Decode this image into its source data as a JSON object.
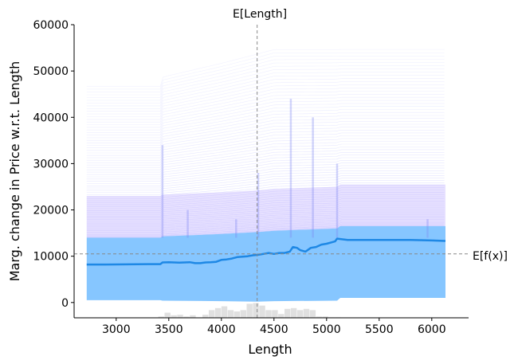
{
  "chart_data": {
    "type": "line",
    "title": "",
    "xlabel": "Length",
    "ylabel": "Marg. change in Price w.r.t. Length",
    "xlim": [
      2600,
      6350
    ],
    "ylim": [
      -3300,
      60000
    ],
    "xticks": [
      "3000",
      "3500",
      "4000",
      "4500",
      "5000",
      "5500",
      "6000"
    ],
    "yticks": [
      "0",
      "10000",
      "20000",
      "30000",
      "40000",
      "50000",
      "60000"
    ],
    "reference_lines": {
      "vertical": {
        "label": "E[Length]",
        "x": 4340
      },
      "horizontal": {
        "label": "E[f(x)]",
        "y": 10500
      }
    },
    "series": [
      {
        "name": "",
        "color": "#1e88e5",
        "x": [
          2720,
          2900,
          3100,
          3300,
          3420,
          3440,
          3500,
          3600,
          3700,
          3750,
          3800,
          3850,
          3900,
          3950,
          4000,
          4050,
          4100,
          4150,
          4200,
          4250,
          4300,
          4350,
          4400,
          4450,
          4500,
          4550,
          4600,
          4650,
          4680,
          4720,
          4750,
          4800,
          4850,
          4900,
          4950,
          5000,
          5050,
          5080,
          5100,
          5200,
          5500,
          5800,
          6000,
          6130
        ],
        "y": [
          8200,
          8200,
          8250,
          8300,
          8300,
          8650,
          8700,
          8600,
          8700,
          8500,
          8500,
          8650,
          8700,
          8800,
          9200,
          9300,
          9500,
          9800,
          9900,
          10000,
          10200,
          10300,
          10500,
          10700,
          10500,
          10700,
          10700,
          11000,
          12000,
          11800,
          11300,
          11000,
          11800,
          12000,
          12500,
          12700,
          13000,
          13200,
          13800,
          13500,
          13500,
          13500,
          13400,
          13300
        ]
      }
    ],
    "band": {
      "color": "#80c3ff",
      "x": [
        2720,
        3420,
        3440,
        4000,
        4340,
        4500,
        5100,
        5130,
        6130
      ],
      "y_low": [
        500,
        500,
        400,
        300,
        200,
        300,
        400,
        1000,
        1000
      ],
      "y_high": [
        14000,
        14000,
        14300,
        14800,
        15200,
        15500,
        16000,
        16500,
        16500
      ]
    },
    "ice_cloud": {
      "color": "#8a8cff",
      "x": [
        2720,
        3420,
        3440,
        4000,
        4340,
        4500,
        5100,
        5130,
        6130
      ],
      "y_top": [
        47000,
        47000,
        49000,
        52000,
        54000,
        55000,
        55000,
        55000,
        55000
      ]
    },
    "spikes": [
      {
        "x": 3440,
        "y": 34000
      },
      {
        "x": 3680,
        "y": 20000
      },
      {
        "x": 4140,
        "y": 18000
      },
      {
        "x": 4350,
        "y": 28000
      },
      {
        "x": 4660,
        "y": 44000
      },
      {
        "x": 4870,
        "y": 40000
      },
      {
        "x": 5100,
        "y": 30000
      },
      {
        "x": 5960,
        "y": 18000
      }
    ],
    "histogram": {
      "color": "#e0e0e0",
      "bins": [
        3400,
        3460,
        3520,
        3580,
        3640,
        3700,
        3760,
        3820,
        3880,
        3940,
        4000,
        4060,
        4120,
        4180,
        4240,
        4300,
        4360,
        4420,
        4480,
        4540,
        4600,
        4660,
        4720,
        4780,
        4840,
        4900,
        4960,
        5020,
        5080
      ],
      "counts": [
        0.05,
        0.2,
        0.1,
        0.12,
        0.05,
        0.1,
        0.0,
        0.12,
        0.3,
        0.38,
        0.45,
        0.3,
        0.25,
        0.3,
        0.55,
        0.58,
        0.48,
        0.3,
        0.3,
        0.15,
        0.35,
        0.38,
        0.3,
        0.35,
        0.3,
        0.05,
        0.05,
        0.02,
        0.02
      ]
    }
  }
}
